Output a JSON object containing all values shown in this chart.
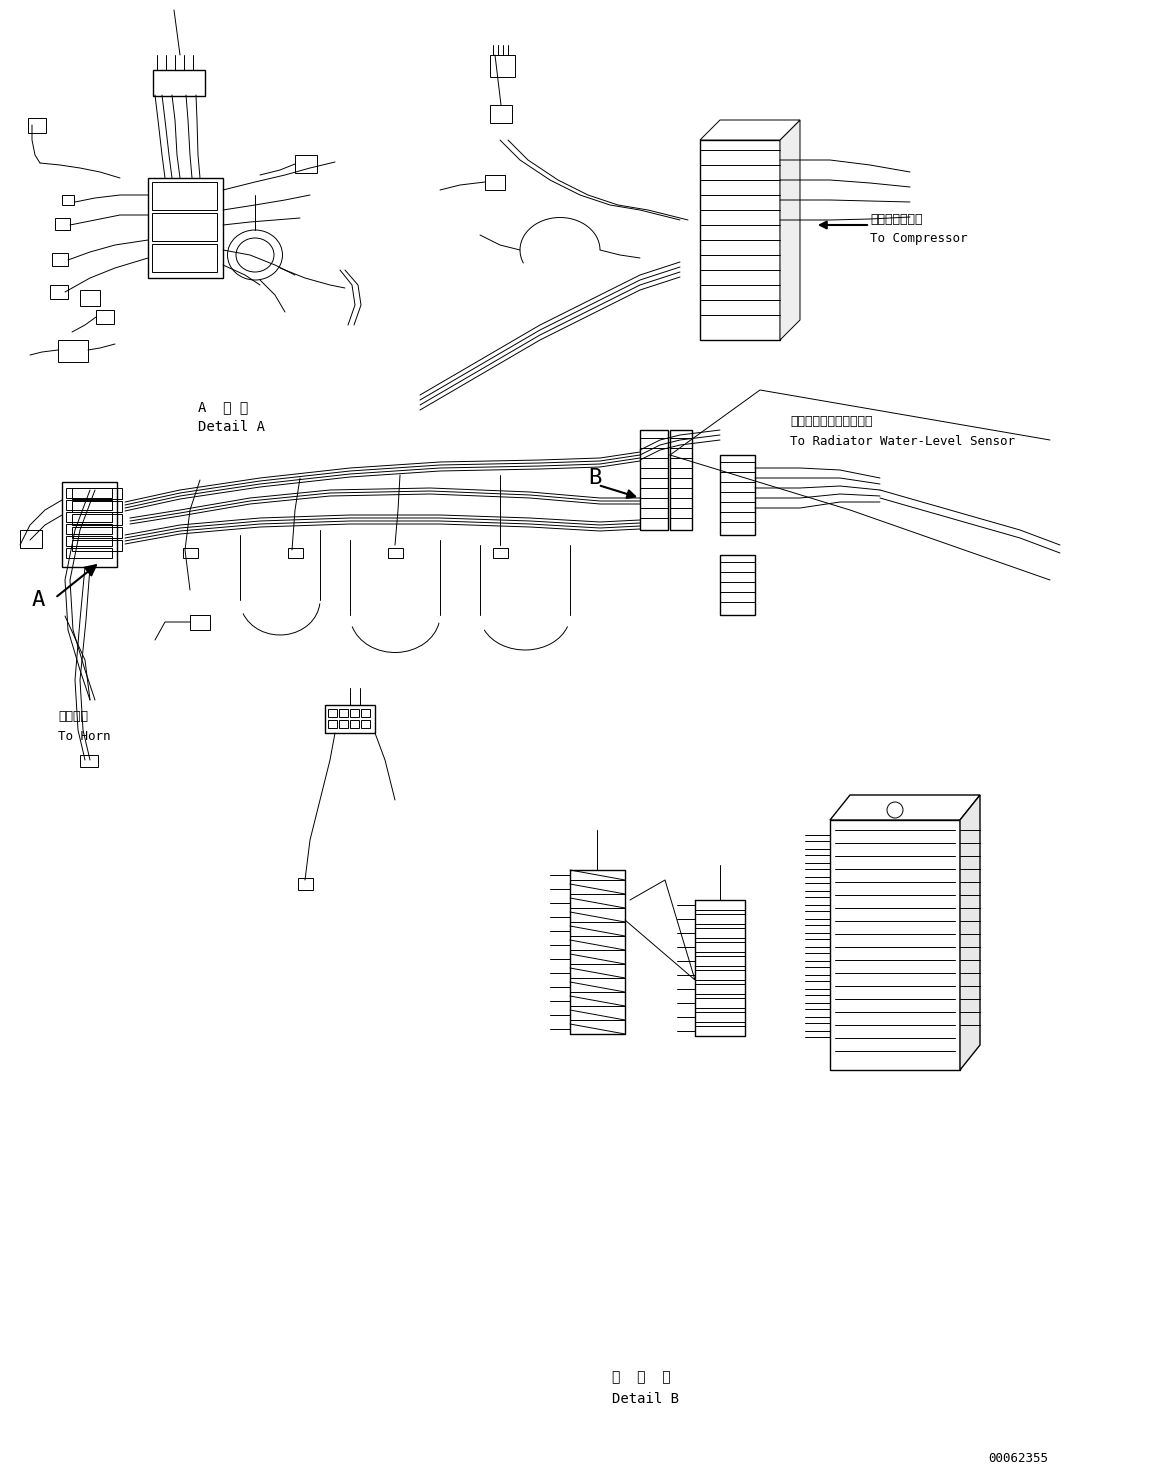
{
  "background_color": "#ffffff",
  "fig_width": 11.63,
  "fig_height": 14.8,
  "dpi": 100,
  "labels": {
    "detail_a_jp": "A  詳 細",
    "detail_a_en": "Detail A",
    "detail_b_jp": "日  詳  細",
    "detail_b_en": "Detail B",
    "compressor_jp": "コンプレッサへ",
    "compressor_en": "To Compressor",
    "radiator_jp": "ラジエータ水位センサへ",
    "radiator_en": "To Radiator Water-Level Sensor",
    "horn_jp": "ホーンへ",
    "horn_en": "To Horn",
    "label_a": "A",
    "label_b": "B",
    "part_number": "00062355"
  }
}
